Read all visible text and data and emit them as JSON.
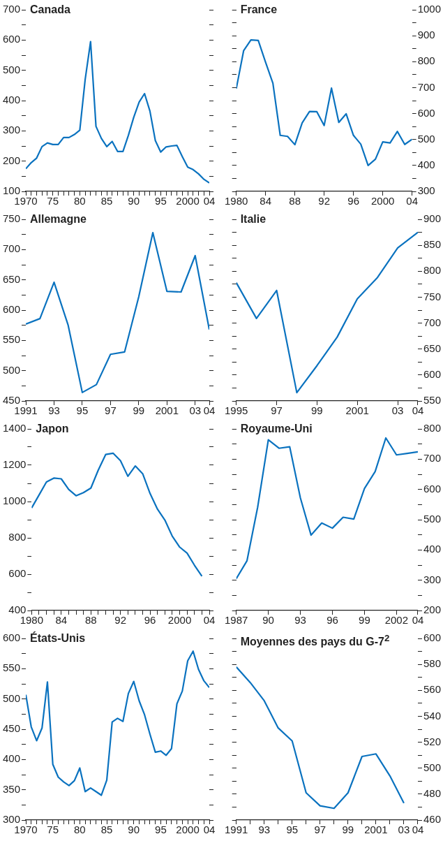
{
  "chart_data": [
    {
      "type": "line",
      "title": "Canada",
      "color": "#0a72bf",
      "xlim": [
        1970,
        2004
      ],
      "ylim": [
        100,
        700
      ],
      "x": [
        1970,
        1971,
        1972,
        1973,
        1974,
        1975,
        1976,
        1977,
        1978,
        1979,
        1980,
        1981,
        1982,
        1983,
        1984,
        1985,
        1986,
        1987,
        1988,
        1989,
        1990,
        1991,
        1992,
        1993,
        1994,
        1995,
        1996,
        1997,
        1998,
        1999,
        2000,
        2001,
        2002,
        2003,
        2004
      ],
      "values": [
        175,
        195,
        210,
        248,
        260,
        255,
        255,
        278,
        278,
        288,
        302,
        470,
        595,
        315,
        275,
        248,
        265,
        232,
        232,
        285,
        345,
        395,
        423,
        365,
        268,
        230,
        247,
        250,
        252,
        215,
        180,
        172,
        158,
        140,
        128
      ],
      "xticks": [
        1970,
        {
          "value": 1971,
          "label": null
        },
        {
          "value": 1972,
          "label": null
        },
        {
          "value": 1973,
          "label": null
        },
        {
          "value": 1974,
          "label": null
        },
        {
          "value": 1975,
          "label": "75"
        },
        {
          "value": 1976,
          "label": null
        },
        {
          "value": 1977,
          "label": null
        },
        {
          "value": 1978,
          "label": null
        },
        {
          "value": 1979,
          "label": null
        },
        {
          "value": 1980,
          "label": "80"
        },
        {
          "value": 1981,
          "label": null
        },
        {
          "value": 1982,
          "label": null
        },
        {
          "value": 1983,
          "label": null
        },
        {
          "value": 1984,
          "label": null
        },
        {
          "value": 1985,
          "label": "85"
        },
        {
          "value": 1986,
          "label": null
        },
        {
          "value": 1987,
          "label": null
        },
        {
          "value": 1988,
          "label": null
        },
        {
          "value": 1989,
          "label": null
        },
        {
          "value": 1990,
          "label": "90"
        },
        {
          "value": 1991,
          "label": null
        },
        {
          "value": 1992,
          "label": null
        },
        {
          "value": 1993,
          "label": null
        },
        {
          "value": 1994,
          "label": null
        },
        {
          "value": 1995,
          "label": "95"
        },
        {
          "value": 1996,
          "label": null
        },
        {
          "value": 1997,
          "label": null
        },
        {
          "value": 1998,
          "label": null
        },
        {
          "value": 1999,
          "label": null
        },
        2000,
        {
          "value": 2001,
          "label": null
        },
        {
          "value": 2002,
          "label": null
        },
        {
          "value": 2003,
          "label": null
        },
        {
          "value": 2004,
          "label": "04"
        }
      ],
      "yticks": [
        100,
        {
          "value": 150,
          "label": null
        },
        200,
        {
          "value": 250,
          "label": null
        },
        300,
        {
          "value": 350,
          "label": null
        },
        400,
        {
          "value": 450,
          "label": null
        },
        500,
        {
          "value": 550,
          "label": null
        },
        600,
        {
          "value": 650,
          "label": null
        },
        700
      ]
    },
    {
      "type": "line",
      "title": "France",
      "color": "#0a72bf",
      "xlim": [
        1980,
        2004
      ],
      "ylim": [
        300,
        1000
      ],
      "x": [
        1980,
        1981,
        1982,
        1983,
        1984,
        1985,
        1986,
        1987,
        1988,
        1989,
        1990,
        1991,
        1992,
        1993,
        1994,
        1995,
        1996,
        1997,
        1998,
        1999,
        2000,
        2001,
        2002,
        2003,
        2004
      ],
      "values": [
        696,
        842,
        884,
        882,
        798,
        717,
        516,
        512,
        480,
        564,
        608,
        607,
        554,
        698,
        566,
        599,
        516,
        482,
        400,
        424,
        491,
        487,
        531,
        481,
        501
      ],
      "xticks": [
        1980,
        {
          "value": 1984,
          "label": "84"
        },
        {
          "value": 1988,
          "label": "88"
        },
        {
          "value": 1992,
          "label": "92"
        },
        {
          "value": 1996,
          "label": "96"
        },
        2000,
        {
          "value": 2004,
          "label": "04"
        }
      ],
      "yticks": [
        300,
        {
          "value": 350,
          "label": null
        },
        400,
        {
          "value": 450,
          "label": null
        },
        500,
        {
          "value": 550,
          "label": null
        },
        600,
        {
          "value": 650,
          "label": null
        },
        700,
        {
          "value": 750,
          "label": null
        },
        800,
        {
          "value": 850,
          "label": null
        },
        900,
        {
          "value": 950,
          "label": null
        },
        1000
      ]
    },
    {
      "type": "line",
      "title": "Allemagne",
      "color": "#0a72bf",
      "xlim": [
        1991,
        2004
      ],
      "ylim": [
        450,
        750
      ],
      "x": [
        1991,
        1992,
        1993,
        1994,
        1995,
        1996,
        1997,
        1998,
        1999,
        2000,
        2001,
        2002,
        2003,
        2004
      ],
      "values": [
        577,
        586,
        646,
        575,
        464,
        477,
        527,
        531,
        622,
        728,
        631,
        630,
        690,
        568
      ],
      "xticks": [
        1991,
        {
          "value": 1993,
          "label": "93"
        },
        {
          "value": 1995,
          "label": "95"
        },
        {
          "value": 1997,
          "label": "97"
        },
        {
          "value": 1999,
          "label": "99"
        },
        2001,
        {
          "value": 2003,
          "label": "03"
        },
        {
          "value": 2004,
          "label": "04"
        }
      ],
      "yticks": [
        450,
        {
          "value": 475,
          "label": null
        },
        500,
        {
          "value": 525,
          "label": null
        },
        550,
        {
          "value": 575,
          "label": null
        },
        600,
        {
          "value": 625,
          "label": null
        },
        650,
        {
          "value": 675,
          "label": null
        },
        700,
        {
          "value": 725,
          "label": null
        },
        750
      ]
    },
    {
      "type": "line",
      "title": "Italie",
      "color": "#0a72bf",
      "xlim": [
        1995,
        2004
      ],
      "ylim": [
        550,
        900
      ],
      "x": [
        1995,
        1996,
        1997,
        1998,
        1999,
        2000,
        2001,
        2002,
        2003,
        2004
      ],
      "values": [
        778,
        709,
        763,
        566,
        618,
        673,
        747,
        788,
        845,
        875
      ],
      "xticks": [
        1995,
        {
          "value": 1997,
          "label": "97"
        },
        {
          "value": 1999,
          "label": "99"
        },
        2001,
        {
          "value": 2003,
          "label": "03"
        },
        {
          "value": 2004,
          "label": "04"
        }
      ],
      "yticks": [
        550,
        {
          "value": 575,
          "label": null
        },
        600,
        {
          "value": 625,
          "label": null
        },
        650,
        {
          "value": 675,
          "label": null
        },
        700,
        {
          "value": 725,
          "label": null
        },
        750,
        {
          "value": 775,
          "label": null
        },
        800,
        {
          "value": 825,
          "label": null
        },
        850,
        {
          "value": 875,
          "label": null
        },
        900
      ]
    },
    {
      "type": "line",
      "title": "Japon",
      "color": "#0a72bf",
      "xlim": [
        1980,
        2004
      ],
      "ylim": [
        400,
        1400
      ],
      "x": [
        1980,
        1981,
        1982,
        1983,
        1984,
        1985,
        1986,
        1987,
        1988,
        1989,
        1990,
        1991,
        1992,
        1993,
        1994,
        1995,
        1996,
        1997,
        1998,
        1999,
        2000,
        2001,
        2002,
        2003
      ],
      "values": [
        965,
        1036,
        1108,
        1129,
        1125,
        1067,
        1032,
        1049,
        1074,
        1173,
        1259,
        1266,
        1225,
        1139,
        1196,
        1153,
        1044,
        958,
        898,
        809,
        749,
        716,
        649,
        589
      ],
      "xticks": [
        1980,
        {
          "value": 1981,
          "label": null
        },
        {
          "value": 1982,
          "label": null
        },
        {
          "value": 1983,
          "label": null
        },
        {
          "value": 1984,
          "label": "84"
        },
        {
          "value": 1985,
          "label": null
        },
        {
          "value": 1986,
          "label": null
        },
        {
          "value": 1987,
          "label": null
        },
        {
          "value": 1988,
          "label": "88"
        },
        {
          "value": 1989,
          "label": null
        },
        {
          "value": 1990,
          "label": null
        },
        {
          "value": 1991,
          "label": null
        },
        {
          "value": 1992,
          "label": "92"
        },
        {
          "value": 1993,
          "label": null
        },
        {
          "value": 1994,
          "label": null
        },
        {
          "value": 1995,
          "label": null
        },
        {
          "value": 1996,
          "label": "96"
        },
        {
          "value": 1997,
          "label": null
        },
        {
          "value": 1998,
          "label": null
        },
        {
          "value": 1999,
          "label": null
        },
        2000,
        {
          "value": 2001,
          "label": null
        },
        {
          "value": 2002,
          "label": null
        },
        {
          "value": 2003,
          "label": null
        },
        {
          "value": 2004,
          "label": "04"
        }
      ],
      "yticks": [
        400,
        {
          "value": 500,
          "label": null
        },
        600,
        {
          "value": 700,
          "label": null
        },
        800,
        {
          "value": 900,
          "label": null
        },
        1000,
        {
          "value": 1100,
          "label": null
        },
        1200,
        {
          "value": 1300,
          "label": null
        },
        1400
      ]
    },
    {
      "type": "line",
      "title": "Royaume-Uni",
      "color": "#0a72bf",
      "xlim": [
        1987,
        2004
      ],
      "ylim": [
        200,
        800
      ],
      "x": [
        1987,
        1988,
        1989,
        1990,
        1991,
        1992,
        1993,
        1994,
        1995,
        1996,
        1997,
        1998,
        1999,
        2000,
        2001,
        2002,
        2003,
        2004
      ],
      "values": [
        305,
        364,
        541,
        764,
        736,
        741,
        572,
        449,
        489,
        472,
        508,
        502,
        603,
        659,
        770,
        714,
        719,
        724
      ],
      "xticks": [
        1987,
        {
          "value": 1990,
          "label": "90"
        },
        {
          "value": 1993,
          "label": "93"
        },
        {
          "value": 1996,
          "label": "96"
        },
        {
          "value": 1999,
          "label": "99"
        },
        2002,
        {
          "value": 2004,
          "label": "04"
        }
      ],
      "yticks": [
        200,
        {
          "value": 250,
          "label": null
        },
        300,
        {
          "value": 350,
          "label": null
        },
        400,
        {
          "value": 450,
          "label": null
        },
        500,
        {
          "value": 550,
          "label": null
        },
        600,
        {
          "value": 650,
          "label": null
        },
        700,
        {
          "value": 750,
          "label": null
        },
        800
      ]
    },
    {
      "type": "line",
      "title": "États-Unis",
      "color": "#0a72bf",
      "xlim": [
        1970,
        2004
      ],
      "ylim": [
        300,
        600
      ],
      "x": [
        1970,
        1971,
        1972,
        1973,
        1974,
        1975,
        1976,
        1977,
        1978,
        1979,
        1980,
        1981,
        1982,
        1983,
        1984,
        1985,
        1986,
        1987,
        1988,
        1989,
        1990,
        1991,
        1992,
        1993,
        1994,
        1995,
        1996,
        1997,
        1998,
        1999,
        2000,
        2001,
        2002,
        2003,
        2004
      ],
      "values": [
        507,
        454,
        431,
        452,
        528,
        392,
        371,
        363,
        357,
        365,
        386,
        347,
        353,
        347,
        341,
        366,
        462,
        468,
        463,
        509,
        529,
        497,
        474,
        442,
        412,
        414,
        407,
        418,
        492,
        513,
        563,
        579,
        549,
        530,
        519
      ],
      "xticks": [
        1970,
        {
          "value": 1971,
          "label": null
        },
        {
          "value": 1972,
          "label": null
        },
        {
          "value": 1973,
          "label": null
        },
        {
          "value": 1974,
          "label": null
        },
        {
          "value": 1975,
          "label": "75"
        },
        {
          "value": 1976,
          "label": null
        },
        {
          "value": 1977,
          "label": null
        },
        {
          "value": 1978,
          "label": null
        },
        {
          "value": 1979,
          "label": null
        },
        {
          "value": 1980,
          "label": "80"
        },
        {
          "value": 1981,
          "label": null
        },
        {
          "value": 1982,
          "label": null
        },
        {
          "value": 1983,
          "label": null
        },
        {
          "value": 1984,
          "label": null
        },
        {
          "value": 1985,
          "label": "85"
        },
        {
          "value": 1986,
          "label": null
        },
        {
          "value": 1987,
          "label": null
        },
        {
          "value": 1988,
          "label": null
        },
        {
          "value": 1989,
          "label": null
        },
        {
          "value": 1990,
          "label": "90"
        },
        {
          "value": 1991,
          "label": null
        },
        {
          "value": 1992,
          "label": null
        },
        {
          "value": 1993,
          "label": null
        },
        {
          "value": 1994,
          "label": null
        },
        {
          "value": 1995,
          "label": "95"
        },
        {
          "value": 1996,
          "label": null
        },
        {
          "value": 1997,
          "label": null
        },
        {
          "value": 1998,
          "label": null
        },
        {
          "value": 1999,
          "label": null
        },
        2000,
        {
          "value": 2001,
          "label": null
        },
        {
          "value": 2002,
          "label": null
        },
        {
          "value": 2003,
          "label": null
        },
        {
          "value": 2004,
          "label": "04"
        }
      ],
      "yticks": [
        300,
        {
          "value": 325,
          "label": null
        },
        350,
        {
          "value": 375,
          "label": null
        },
        400,
        {
          "value": 425,
          "label": null
        },
        450,
        {
          "value": 475,
          "label": null
        },
        500,
        {
          "value": 525,
          "label": null
        },
        550,
        {
          "value": 575,
          "label": null
        },
        600
      ]
    },
    {
      "type": "line",
      "title": "Moyennes des pays du G-7$^{2}$",
      "color": "#0a72bf",
      "xlim": [
        1991,
        2004
      ],
      "ylim": [
        460,
        600
      ],
      "x": [
        1991,
        1992,
        1993,
        1994,
        1995,
        1996,
        1997,
        1998,
        1999,
        2000,
        2001,
        2002,
        2003
      ],
      "values": [
        578,
        566,
        552,
        531,
        521,
        481,
        471,
        469,
        481,
        509,
        511,
        494,
        473
      ],
      "xticks": [
        1991,
        {
          "value": 1992,
          "label": null
        },
        {
          "value": 1993,
          "label": "93"
        },
        {
          "value": 1994,
          "label": null
        },
        {
          "value": 1995,
          "label": "95"
        },
        {
          "value": 1996,
          "label": null
        },
        {
          "value": 1997,
          "label": "97"
        },
        {
          "value": 1998,
          "label": null
        },
        {
          "value": 1999,
          "label": "99"
        },
        {
          "value": 2000,
          "label": null
        },
        2001,
        {
          "value": 2002,
          "label": null
        },
        {
          "value": 2003,
          "label": "03"
        },
        {
          "value": 2004,
          "label": "04"
        }
      ],
      "yticks": [
        460,
        {
          "value": 470,
          "label": null
        },
        480,
        {
          "value": 490,
          "label": null
        },
        500,
        {
          "value": 510,
          "label": null
        },
        520,
        {
          "value": 530,
          "label": null
        },
        540,
        {
          "value": 550,
          "label": null
        },
        560,
        {
          "value": 570,
          "label": null
        },
        580,
        {
          "value": 590,
          "label": null
        },
        600
      ]
    }
  ]
}
